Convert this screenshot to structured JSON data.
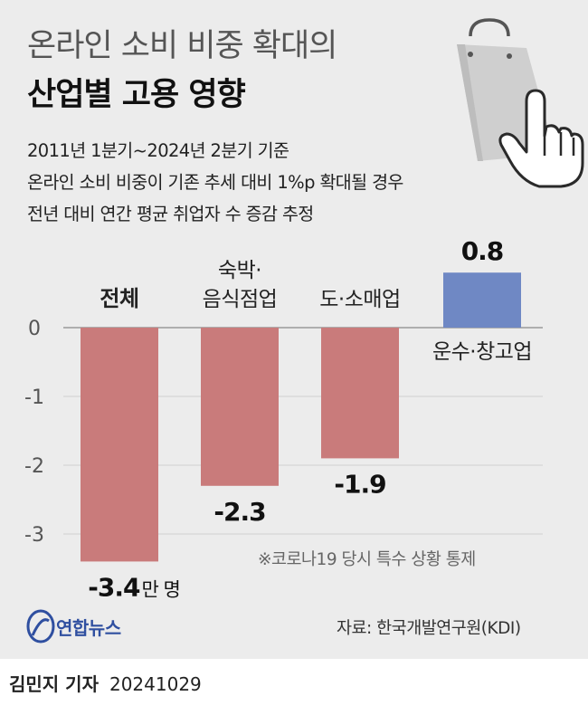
{
  "title": {
    "line1": "온라인 소비 비중 확대의",
    "line2": "산업별 고용 영향"
  },
  "subtitle": [
    "2011년 1분기~2024년 2분기 기준",
    "온라인 소비 비중이 기존 추세 대비 1%p 확대될 경우",
    "전년 대비 연간 평균 취업자 수 증감 추정"
  ],
  "chart_data": {
    "type": "bar",
    "categories": [
      "전체",
      "숙박·음식점업",
      "도·소매업",
      "운수·창고업"
    ],
    "category_lines": [
      [
        "전체"
      ],
      [
        "숙박·",
        "음식점업"
      ],
      [
        "도·소매업"
      ],
      [
        "운수·창고업"
      ]
    ],
    "values": [
      -3.4,
      -2.3,
      -1.9,
      0.8
    ],
    "value_labels": [
      "-3.4",
      "-2.3",
      "-1.9",
      "0.8"
    ],
    "unit": "만 명",
    "yticks": [
      0,
      -1,
      -2,
      -3
    ],
    "ytick_labels": [
      "0",
      "-1",
      "-2",
      "-3"
    ],
    "ylim": [
      -3.4,
      0.8
    ],
    "grid": true,
    "colors": {
      "negative": "#c97b7b",
      "positive": "#6f88c4"
    }
  },
  "note": "※코로나19 당시 특수 상황 통제",
  "source": "자료: 한국개발연구원(KDI)",
  "logo": {
    "text": "연합뉴스"
  },
  "byline": {
    "name": "김민지 기자",
    "date": "20241029"
  },
  "icons": [
    "shopping-bag-icon",
    "pointing-hand-icon"
  ]
}
